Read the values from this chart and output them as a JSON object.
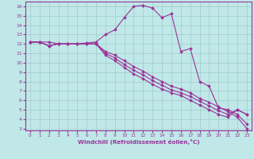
{
  "xlabel": "Windchill (Refroidissement éolien,°C)",
  "xlim": [
    -0.5,
    23.5
  ],
  "ylim": [
    2.8,
    16.5
  ],
  "yticks": [
    3,
    4,
    5,
    6,
    7,
    8,
    9,
    10,
    11,
    12,
    13,
    14,
    15,
    16
  ],
  "xticks": [
    0,
    1,
    2,
    3,
    4,
    5,
    6,
    7,
    8,
    9,
    10,
    11,
    12,
    13,
    14,
    15,
    16,
    17,
    18,
    19,
    20,
    21,
    22,
    23
  ],
  "background_color": "#c0e8e8",
  "grid_color": "#a0cccc",
  "line_color": "#993399",
  "series": [
    [
      12.2,
      12.2,
      12.2,
      12.0,
      12.0,
      12.0,
      12.1,
      12.2,
      13.0,
      13.5,
      14.8,
      16.0,
      16.1,
      15.8,
      14.8,
      15.2,
      11.2,
      11.5,
      8.0,
      7.5,
      5.2,
      5.0,
      4.5,
      3.5
    ],
    [
      12.2,
      12.2,
      11.8,
      12.0,
      12.0,
      12.0,
      12.0,
      12.0,
      11.2,
      10.8,
      10.2,
      9.6,
      9.1,
      8.5,
      8.0,
      7.5,
      7.2,
      6.8,
      6.2,
      5.8,
      5.3,
      4.8,
      4.2,
      3.0
    ],
    [
      12.2,
      12.2,
      11.8,
      12.0,
      12.0,
      12.0,
      12.0,
      12.0,
      11.0,
      10.5,
      9.8,
      9.2,
      8.7,
      8.1,
      7.6,
      7.1,
      6.8,
      6.4,
      5.9,
      5.4,
      4.9,
      4.5,
      5.0,
      4.5
    ],
    [
      12.2,
      12.2,
      11.8,
      12.0,
      12.0,
      12.0,
      12.0,
      12.0,
      10.8,
      10.2,
      9.5,
      8.8,
      8.3,
      7.7,
      7.2,
      6.8,
      6.5,
      6.0,
      5.5,
      5.0,
      4.5,
      4.2,
      5.0,
      4.5
    ]
  ]
}
